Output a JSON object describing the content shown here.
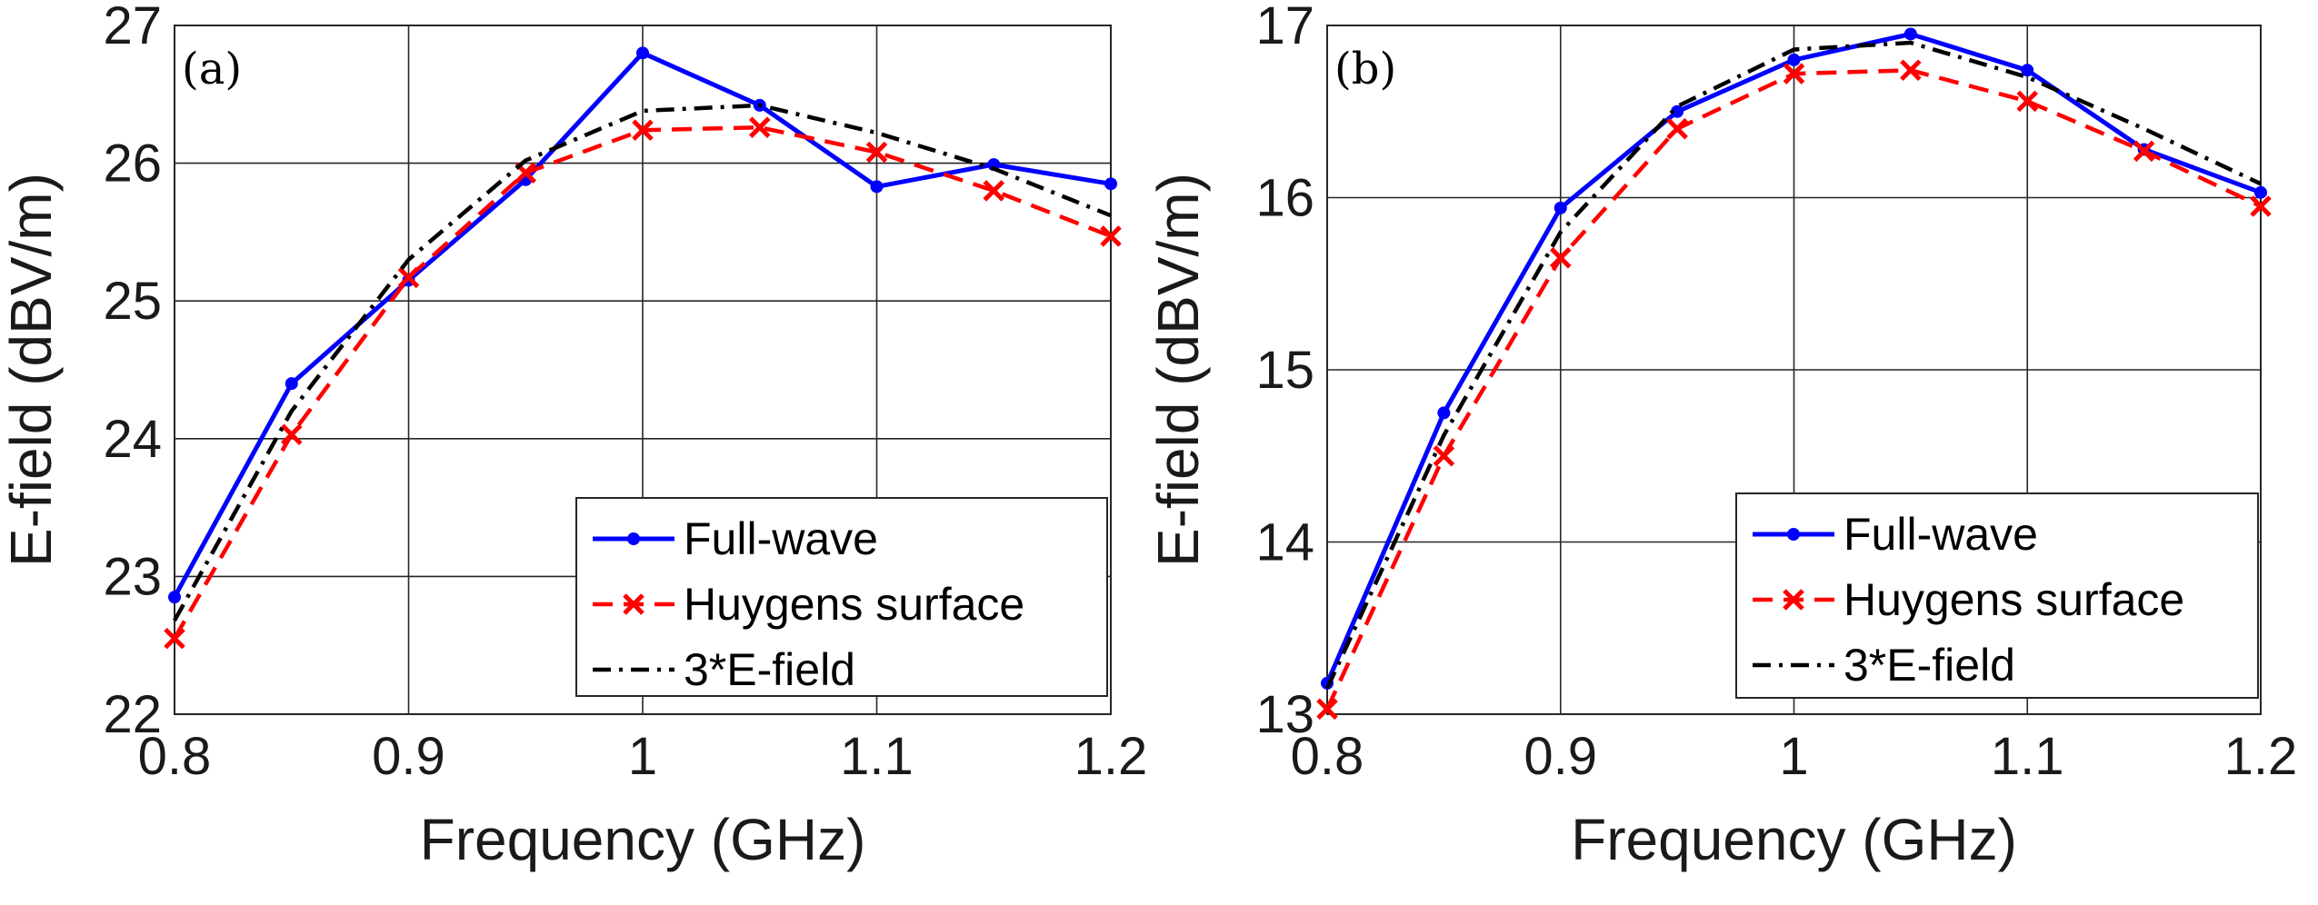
{
  "chart_data": [
    {
      "type": "line",
      "panel_label": "(a)",
      "xlabel": "Frequency (GHz)",
      "ylabel": "E-field (dBV/m)",
      "xlim": [
        0.8,
        1.2
      ],
      "ylim": [
        22,
        27
      ],
      "xticks": [
        0.8,
        0.9,
        1.0,
        1.1,
        1.2
      ],
      "xtick_labels": [
        "0.8",
        "0.9",
        "1",
        "1.1",
        "1.2"
      ],
      "yticks": [
        22,
        23,
        24,
        25,
        26,
        27
      ],
      "ytick_labels": [
        "22",
        "23",
        "24",
        "25",
        "26",
        "27"
      ],
      "grid": true,
      "legend_position": "bottom-right",
      "x": [
        0.8,
        0.85,
        0.9,
        0.95,
        1.0,
        1.05,
        1.1,
        1.15,
        1.2
      ],
      "series": [
        {
          "name": "Full-wave",
          "color": "#0000ff",
          "style": "solid",
          "marker": "dot",
          "values": [
            22.85,
            24.4,
            25.15,
            25.88,
            26.8,
            26.42,
            25.83,
            25.99,
            25.85
          ]
        },
        {
          "name": "Huygens surface",
          "color": "#ff0000",
          "style": "dashed",
          "marker": "x",
          "values": [
            22.55,
            24.03,
            25.17,
            25.93,
            26.24,
            26.26,
            26.08,
            25.8,
            25.47
          ]
        },
        {
          "name": "3*E-field",
          "color": "#000000",
          "style": "dashdot",
          "marker": "none",
          "values": [
            22.68,
            24.2,
            25.3,
            26.02,
            26.38,
            26.42,
            26.22,
            25.96,
            25.62
          ]
        }
      ]
    },
    {
      "type": "line",
      "panel_label": "(b)",
      "xlabel": "Frequency (GHz)",
      "ylabel": "E-field (dBV/m)",
      "xlim": [
        0.8,
        1.2
      ],
      "ylim": [
        13,
        17
      ],
      "xticks": [
        0.8,
        0.9,
        1.0,
        1.1,
        1.2
      ],
      "xtick_labels": [
        "0.8",
        "0.9",
        "1",
        "1.1",
        "1.2"
      ],
      "yticks": [
        13,
        14,
        15,
        16,
        17
      ],
      "ytick_labels": [
        "13",
        "14",
        "15",
        "16",
        "17"
      ],
      "grid": true,
      "legend_position": "bottom-right",
      "x": [
        0.8,
        0.85,
        0.9,
        0.95,
        1.0,
        1.05,
        1.1,
        1.15,
        1.2
      ],
      "series": [
        {
          "name": "Full-wave",
          "color": "#0000ff",
          "style": "solid",
          "marker": "dot",
          "values": [
            13.18,
            14.75,
            15.94,
            16.5,
            16.8,
            16.95,
            16.74,
            16.28,
            16.03
          ]
        },
        {
          "name": "Huygens surface",
          "color": "#ff0000",
          "style": "dashed",
          "marker": "x",
          "values": [
            13.03,
            14.5,
            15.65,
            16.4,
            16.72,
            16.74,
            16.56,
            16.27,
            15.95
          ]
        },
        {
          "name": "3*E-field",
          "color": "#000000",
          "style": "dashdot",
          "marker": "none",
          "values": [
            13.15,
            14.62,
            15.8,
            16.53,
            16.86,
            16.9,
            16.7,
            16.4,
            16.08
          ]
        }
      ]
    }
  ]
}
